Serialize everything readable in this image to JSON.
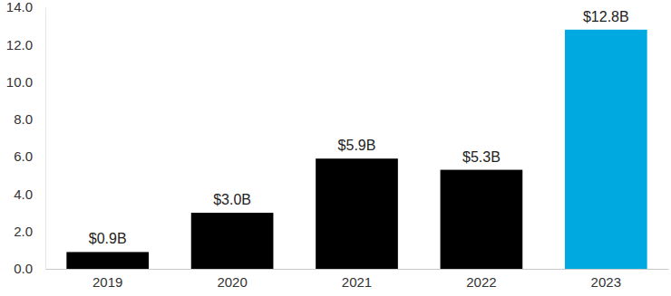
{
  "chart_data": {
    "type": "bar",
    "categories": [
      "2019",
      "2020",
      "2021",
      "2022",
      "2023"
    ],
    "values": [
      0.9,
      3.0,
      5.9,
      5.3,
      12.8
    ],
    "value_labels": [
      "$0.9B",
      "$3.0B",
      "$5.9B",
      "$5.3B",
      "$12.8B"
    ],
    "colors": [
      "#000000",
      "#000000",
      "#000000",
      "#000000",
      "#00a9e0"
    ],
    "ylim": [
      0,
      14
    ],
    "yticks": [
      {
        "value": 0,
        "label": "0.0"
      },
      {
        "value": 2,
        "label": "2.0"
      },
      {
        "value": 4,
        "label": "4.0"
      },
      {
        "value": 6,
        "label": "6.0"
      },
      {
        "value": 8,
        "label": "8.0"
      },
      {
        "value": 10,
        "label": "10.0"
      },
      {
        "value": 12,
        "label": "12.0"
      },
      {
        "value": 14,
        "label": "14.0"
      }
    ],
    "grid": false,
    "data_labels": true
  }
}
